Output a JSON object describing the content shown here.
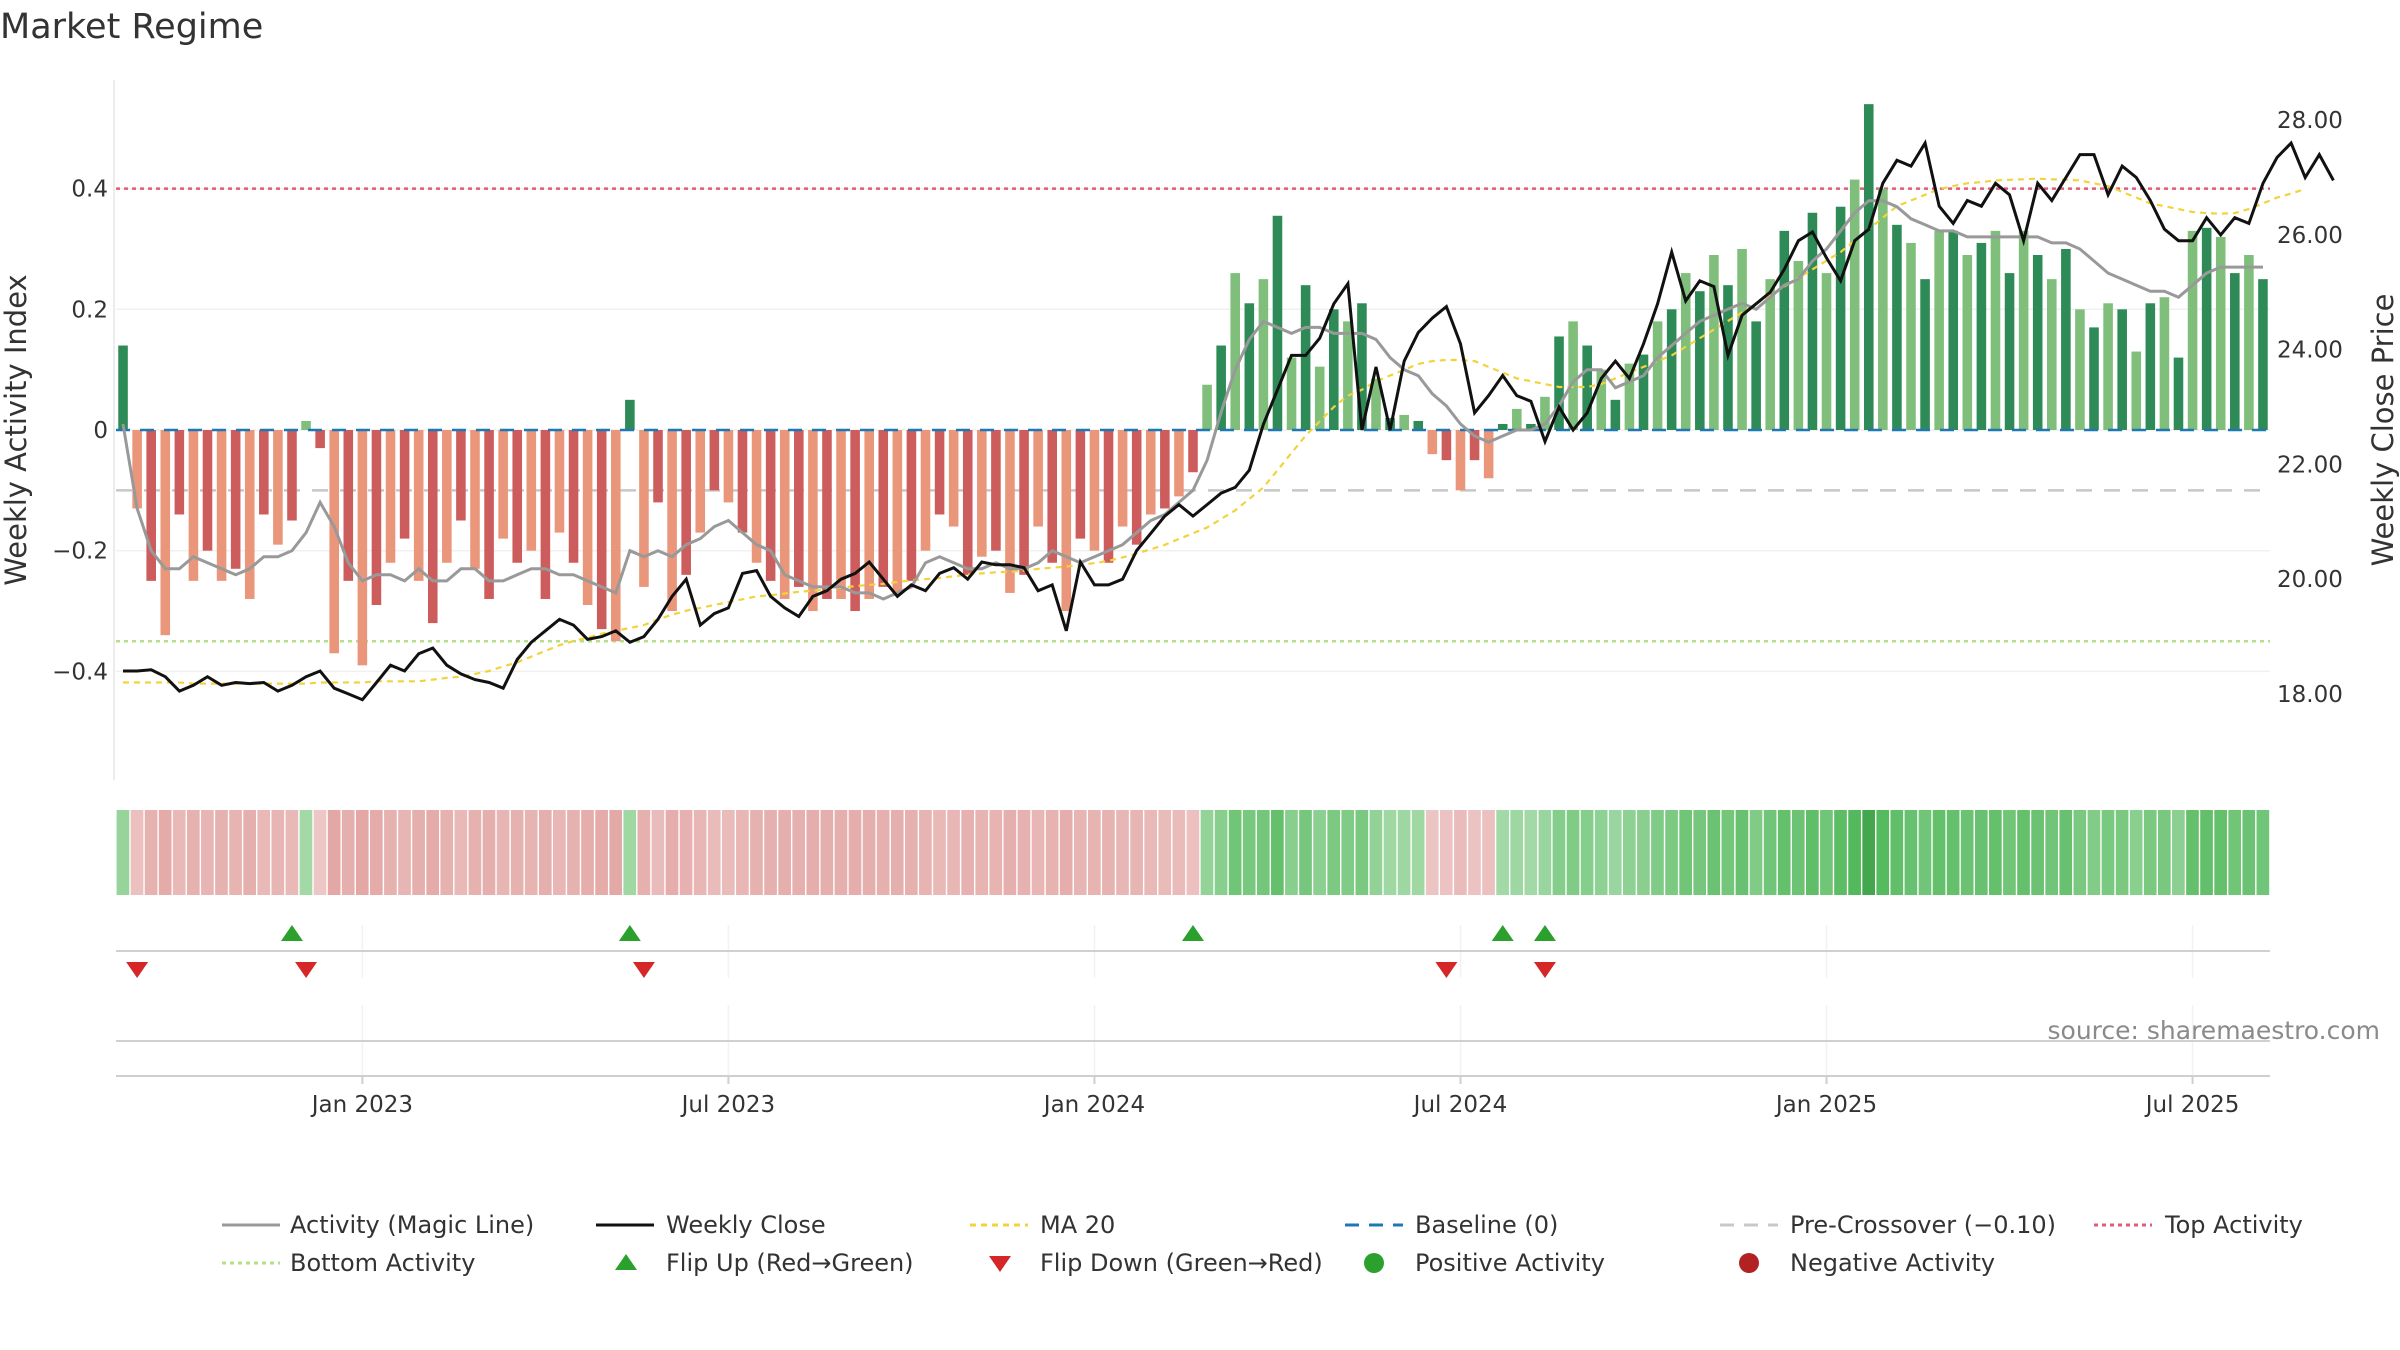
{
  "title": "Market Regime",
  "source": "source: sharemaestro.com",
  "colors": {
    "pos_dark": "#2e8b57",
    "pos_light": "#7fbf7b",
    "neg_dark": "#cd5c5c",
    "neg_light": "#e9967a",
    "magic": "#999999",
    "close": "#111111",
    "ma": "#f2d33b",
    "baseline": "#1f77b4",
    "precross": "#c8c8c8",
    "top": "#e05c7a",
    "bottom": "#b5e08a",
    "flip_up": "#2ca02c",
    "flip_down": "#d62728",
    "pos_dot": "#2ca02c",
    "neg_dot": "#b22222"
  },
  "chart_data": {
    "type": "bar",
    "ylabel": "Weekly Activity Index",
    "y2label": "Weekly Close Price",
    "ylim": [
      -0.58,
      0.58
    ],
    "y2lim": [
      16.5,
      28.7
    ],
    "yticks": [
      0.4,
      0.2,
      0,
      -0.2,
      -0.4
    ],
    "ytick_labels": [
      "0.4",
      "0.2",
      "0",
      "−0.2",
      "−0.4"
    ],
    "y2ticks": [
      28,
      26,
      24,
      22,
      20,
      18
    ],
    "y2tick_labels": [
      "28.00",
      "26.00",
      "24.00",
      "22.00",
      "20.00",
      "18.00"
    ],
    "xtick_labels": [
      "Jan 2023",
      "Jul 2023",
      "Jan 2024",
      "Jul 2024",
      "Jan 2025",
      "Jul 2025"
    ],
    "xtick_weeks": [
      17,
      43,
      69,
      95,
      121,
      147
    ],
    "levels": {
      "baseline": 0,
      "pre_crossover": -0.1,
      "top": 0.4,
      "bottom": -0.35
    },
    "grid": true,
    "activity": [
      0.14,
      -0.13,
      -0.25,
      -0.34,
      -0.14,
      -0.25,
      -0.2,
      -0.25,
      -0.23,
      -0.28,
      -0.14,
      -0.19,
      -0.15,
      0.015,
      -0.03,
      -0.37,
      -0.25,
      -0.39,
      -0.29,
      -0.22,
      -0.18,
      -0.25,
      -0.32,
      -0.22,
      -0.15,
      -0.23,
      -0.28,
      -0.18,
      -0.22,
      -0.2,
      -0.28,
      -0.17,
      -0.22,
      -0.29,
      -0.33,
      -0.35,
      0.05,
      -0.26,
      -0.12,
      -0.3,
      -0.24,
      -0.17,
      -0.1,
      -0.12,
      -0.17,
      -0.22,
      -0.25,
      -0.28,
      -0.26,
      -0.3,
      -0.28,
      -0.28,
      -0.3,
      -0.28,
      -0.26,
      -0.27,
      -0.25,
      -0.2,
      -0.14,
      -0.16,
      -0.24,
      -0.21,
      -0.2,
      -0.27,
      -0.24,
      -0.16,
      -0.22,
      -0.3,
      -0.18,
      -0.2,
      -0.22,
      -0.16,
      -0.19,
      -0.14,
      -0.13,
      -0.11,
      -0.07,
      0.075,
      0.14,
      0.26,
      0.21,
      0.25,
      0.355,
      0.12,
      0.24,
      0.105,
      0.2,
      0.18,
      0.21,
      0.085,
      0.02,
      0.025,
      0.015,
      -0.04,
      -0.05,
      -0.1,
      -0.05,
      -0.08,
      0.01,
      0.035,
      0.01,
      0.055,
      0.155,
      0.18,
      0.14,
      0.1,
      0.05,
      0.11,
      0.125,
      0.18,
      0.2,
      0.26,
      0.23,
      0.29,
      0.24,
      0.3,
      0.18,
      0.25,
      0.33,
      0.28,
      0.36,
      0.26,
      0.37,
      0.415,
      0.54,
      0.4,
      0.34,
      0.31,
      0.25,
      0.33,
      0.33,
      0.29,
      0.31,
      0.33,
      0.26,
      0.33,
      0.29,
      0.25,
      0.3,
      0.2,
      0.17,
      0.21,
      0.2,
      0.13,
      0.21,
      0.22,
      0.12,
      0.33,
      0.335,
      0.32,
      0.26,
      0.29,
      0.25
    ],
    "magic_line": [
      0.01,
      -0.13,
      -0.2,
      -0.23,
      -0.23,
      -0.21,
      -0.22,
      -0.23,
      -0.24,
      -0.23,
      -0.21,
      -0.21,
      -0.2,
      -0.17,
      -0.12,
      -0.16,
      -0.22,
      -0.25,
      -0.24,
      -0.24,
      -0.25,
      -0.23,
      -0.25,
      -0.25,
      -0.23,
      -0.23,
      -0.25,
      -0.25,
      -0.24,
      -0.23,
      -0.23,
      -0.24,
      -0.24,
      -0.25,
      -0.26,
      -0.27,
      -0.2,
      -0.21,
      -0.2,
      -0.21,
      -0.19,
      -0.18,
      -0.16,
      -0.15,
      -0.17,
      -0.19,
      -0.2,
      -0.24,
      -0.25,
      -0.26,
      -0.26,
      -0.26,
      -0.27,
      -0.27,
      -0.28,
      -0.27,
      -0.26,
      -0.22,
      -0.21,
      -0.22,
      -0.23,
      -0.23,
      -0.22,
      -0.23,
      -0.23,
      -0.22,
      -0.2,
      -0.21,
      -0.22,
      -0.21,
      -0.2,
      -0.19,
      -0.17,
      -0.15,
      -0.14,
      -0.12,
      -0.1,
      -0.05,
      0.03,
      0.1,
      0.15,
      0.18,
      0.17,
      0.16,
      0.17,
      0.17,
      0.16,
      0.16,
      0.16,
      0.15,
      0.12,
      0.1,
      0.09,
      0.06,
      0.04,
      0.01,
      -0.01,
      -0.02,
      -0.01,
      0.0,
      0.0,
      0.01,
      0.04,
      0.08,
      0.1,
      0.1,
      0.07,
      0.08,
      0.09,
      0.12,
      0.14,
      0.16,
      0.18,
      0.19,
      0.2,
      0.21,
      0.2,
      0.22,
      0.24,
      0.25,
      0.28,
      0.3,
      0.33,
      0.36,
      0.38,
      0.38,
      0.37,
      0.35,
      0.34,
      0.33,
      0.33,
      0.32,
      0.32,
      0.32,
      0.32,
      0.32,
      0.32,
      0.31,
      0.31,
      0.3,
      0.28,
      0.26,
      0.25,
      0.24,
      0.23,
      0.23,
      0.22,
      0.24,
      0.26,
      0.27,
      0.27,
      0.27,
      0.27
    ],
    "weekly_close": [
      18.4,
      18.4,
      18.42,
      18.3,
      18.05,
      18.15,
      18.3,
      18.15,
      18.2,
      18.18,
      18.2,
      18.05,
      18.15,
      18.3,
      18.4,
      18.1,
      18,
      17.9,
      18.2,
      18.5,
      18.4,
      18.7,
      18.8,
      18.5,
      18.35,
      18.25,
      18.2,
      18.1,
      18.6,
      18.9,
      19.1,
      19.3,
      19.2,
      18.95,
      19.0,
      19.1,
      18.9,
      19.0,
      19.3,
      19.7,
      20.0,
      19.2,
      19.4,
      19.5,
      20.1,
      20.15,
      19.7,
      19.5,
      19.35,
      19.7,
      19.8,
      20.0,
      20.1,
      20.3,
      20.0,
      19.7,
      19.9,
      19.8,
      20.1,
      20.2,
      20.0,
      20.3,
      20.25,
      20.25,
      20.2,
      19.8,
      19.9,
      19.1,
      20.3,
      19.9,
      19.9,
      20.0,
      20.5,
      20.8,
      21.1,
      21.3,
      21.1,
      21.3,
      21.5,
      21.6,
      21.9,
      22.7,
      23.3,
      23.9,
      23.9,
      24.2,
      24.8,
      25.15,
      22.6,
      23.7,
      22.6,
      23.8,
      24.3,
      24.55,
      24.75,
      24.1,
      22.9,
      23.2,
      23.55,
      23.2,
      23.1,
      22.4,
      23.0,
      22.6,
      22.9,
      23.5,
      23.8,
      23.5,
      24.1,
      24.8,
      25.7,
      24.85,
      25.2,
      25.1,
      23.9,
      24.6,
      24.8,
      25.0,
      25.4,
      25.9,
      26.05,
      25.6,
      25.2,
      25.9,
      26.1,
      26.9,
      27.3,
      27.2,
      27.6,
      26.5,
      26.2,
      26.6,
      26.5,
      26.9,
      26.7,
      25.9,
      26.9,
      26.6,
      27.0,
      27.4,
      27.4,
      26.7,
      27.2,
      27.0,
      26.6,
      26.1,
      25.9,
      25.9,
      26.3,
      26.0,
      26.3,
      26.2,
      26.9,
      27.35,
      27.6,
      27.0,
      27.4,
      26.95
    ],
    "ma20": [
      18.2,
      18.2,
      18.2,
      18.2,
      18.2,
      18.18,
      18.18,
      18.18,
      18.18,
      18.18,
      18.18,
      18.18,
      18.18,
      18.18,
      18.2,
      18.2,
      18.2,
      18.2,
      18.22,
      18.22,
      18.22,
      18.22,
      18.25,
      18.28,
      18.3,
      18.35,
      18.4,
      18.48,
      18.55,
      18.65,
      18.75,
      18.85,
      18.92,
      18.98,
      19.05,
      19.1,
      19.15,
      19.2,
      19.3,
      19.38,
      19.45,
      19.5,
      19.55,
      19.6,
      19.65,
      19.7,
      19.72,
      19.75,
      19.78,
      19.8,
      19.82,
      19.85,
      19.88,
      19.9,
      19.92,
      19.95,
      19.98,
      20.0,
      20.02,
      20.05,
      20.08,
      20.1,
      20.12,
      20.13,
      20.15,
      20.18,
      20.2,
      20.22,
      20.25,
      20.28,
      20.32,
      20.38,
      20.45,
      20.52,
      20.6,
      20.7,
      20.8,
      20.9,
      21.05,
      21.2,
      21.4,
      21.6,
      21.9,
      22.2,
      22.5,
      22.75,
      23.0,
      23.2,
      23.3,
      23.45,
      23.55,
      23.65,
      23.75,
      23.8,
      23.82,
      23.82,
      23.8,
      23.7,
      23.6,
      23.5,
      23.45,
      23.4,
      23.35,
      23.35,
      23.35,
      23.4,
      23.5,
      23.6,
      23.7,
      23.8,
      23.9,
      24.05,
      24.2,
      24.35,
      24.5,
      24.65,
      24.8,
      24.95,
      25.1,
      25.25,
      25.4,
      25.55,
      25.7,
      25.9,
      26.1,
      26.3,
      26.5,
      26.6,
      26.7,
      26.8,
      26.85,
      26.9,
      26.92,
      26.95,
      26.96,
      26.97,
      26.98,
      26.97,
      26.96,
      26.95,
      26.9,
      26.85,
      26.75,
      26.65,
      26.55,
      26.5,
      26.45,
      26.4,
      26.38,
      26.37,
      26.38,
      26.45,
      26.55,
      26.65,
      26.72,
      26.8
    ],
    "flip_up_weeks": [
      12,
      36,
      76,
      98,
      101
    ],
    "flip_down_weeks": [
      1,
      13,
      37,
      94,
      101
    ],
    "regime_strip": [
      0.12,
      -0.15,
      -0.35,
      -0.45,
      -0.25,
      -0.35,
      -0.3,
      -0.35,
      -0.33,
      -0.4,
      -0.25,
      -0.3,
      -0.25,
      0.02,
      -0.05,
      -0.5,
      -0.4,
      -0.5,
      -0.45,
      -0.35,
      -0.3,
      -0.4,
      -0.45,
      -0.35,
      -0.25,
      -0.35,
      -0.4,
      -0.3,
      -0.35,
      -0.33,
      -0.4,
      -0.28,
      -0.35,
      -0.42,
      -0.45,
      -0.48,
      0.05,
      -0.38,
      -0.2,
      -0.42,
      -0.36,
      -0.28,
      -0.2,
      -0.22,
      -0.28,
      -0.35,
      -0.38,
      -0.4,
      -0.38,
      -0.42,
      -0.4,
      -0.4,
      -0.42,
      -0.4,
      -0.38,
      -0.4,
      -0.38,
      -0.32,
      -0.25,
      -0.28,
      -0.36,
      -0.33,
      -0.32,
      -0.4,
      -0.36,
      -0.28,
      -0.34,
      -0.42,
      -0.3,
      -0.32,
      -0.34,
      -0.28,
      -0.3,
      -0.25,
      -0.22,
      -0.2,
      -0.15,
      0.15,
      0.25,
      0.45,
      0.38,
      0.42,
      0.55,
      0.25,
      0.4,
      0.22,
      0.35,
      0.32,
      0.36,
      0.16,
      0.05,
      0.06,
      0.04,
      -0.08,
      -0.1,
      -0.2,
      -0.1,
      -0.15,
      0.02,
      0.07,
      0.02,
      0.1,
      0.28,
      0.32,
      0.26,
      0.2,
      0.1,
      0.2,
      0.23,
      0.32,
      0.35,
      0.45,
      0.4,
      0.5,
      0.42,
      0.52,
      0.32,
      0.44,
      0.56,
      0.48,
      0.6,
      0.45,
      0.62,
      0.7,
      0.9,
      0.68,
      0.58,
      0.52,
      0.44,
      0.56,
      0.56,
      0.5,
      0.52,
      0.56,
      0.45,
      0.56,
      0.5,
      0.44,
      0.52,
      0.36,
      0.3,
      0.37,
      0.36,
      0.24,
      0.37,
      0.38,
      0.22,
      0.56,
      0.57,
      0.55,
      0.45,
      0.5,
      0.44
    ]
  },
  "legend": {
    "magic": "Activity (Magic Line)",
    "close": "Weekly Close",
    "ma": "MA 20",
    "baseline": "Baseline (0)",
    "precross": "Pre-Crossover (−0.10)",
    "top": "Top Activity",
    "bottom": "Bottom Activity",
    "flip_up": "Flip Up (Red→Green)",
    "flip_down": "Flip Down (Green→Red)",
    "pos_dot": "Positive Activity",
    "neg_dot": "Negative Activity"
  }
}
